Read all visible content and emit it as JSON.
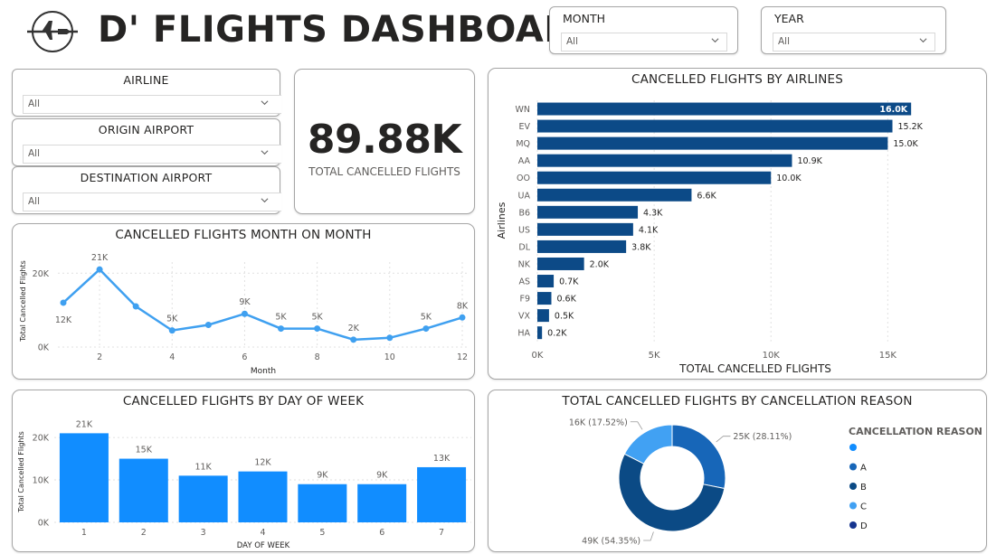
{
  "header": {
    "title": "D' FLIGHTS DASHBOARD",
    "logo_icon": "airplane-logo-icon"
  },
  "filters": {
    "month": {
      "label": "MONTH",
      "value": "All"
    },
    "year": {
      "label": "YEAR",
      "value": "All"
    },
    "airline": {
      "label": "AIRLINE",
      "value": "All"
    },
    "origin": {
      "label": "ORIGIN AIRPORT",
      "value": "All"
    },
    "destination": {
      "label": "DESTINATION AIRPORT",
      "value": "All"
    }
  },
  "kpi": {
    "value": "89.88K",
    "label": "TOTAL CANCELLED FLIGHTS"
  },
  "colors": {
    "line_blue": "#3fa0f0",
    "bar_blue": "#118dff",
    "navy": "#0c4a87",
    "grid": "#e1e1e1",
    "pie_dark": "#0b4a85",
    "pie_mid": "#1766b8",
    "pie_light": "#41a1f3",
    "legend_blank": "#118dff",
    "legend_a": "#1766b8",
    "legend_b": "#0b4a85",
    "legend_c": "#41a1f3",
    "legend_d": "#16358f"
  },
  "chart_data": [
    {
      "id": "airlines",
      "type": "bar",
      "orientation": "horizontal",
      "title": "CANCELLED FLIGHTS BY AIRLINES",
      "xlabel": "TOTAL CANCELLED FLIGHTS",
      "ylabel": "Airlines",
      "xlim": [
        0,
        17000
      ],
      "xticks": [
        0,
        5000,
        10000,
        15000
      ],
      "xtick_labels": [
        "0K",
        "5K",
        "10K",
        "15K"
      ],
      "categories": [
        "WN",
        "EV",
        "MQ",
        "AA",
        "OO",
        "UA",
        "B6",
        "US",
        "DL",
        "NK",
        "AS",
        "F9",
        "VX",
        "HA"
      ],
      "values": [
        16000,
        15200,
        15000,
        10900,
        10000,
        6600,
        4300,
        4100,
        3800,
        2000,
        700,
        600,
        500,
        200
      ],
      "data_labels": [
        "16.0K",
        "15.2K",
        "15.0K",
        "10.9K",
        "10.0K",
        "6.6K",
        "4.3K",
        "4.1K",
        "3.8K",
        "2.0K",
        "0.7K",
        "0.6K",
        "0.5K",
        "0.2K"
      ]
    },
    {
      "id": "month",
      "type": "line",
      "title": "CANCELLED FLIGHTS MONTH ON MONTH",
      "xlabel": "Month",
      "ylabel": "Total Cancelled Flights",
      "xlim": [
        1,
        12
      ],
      "ylim": [
        0,
        23000
      ],
      "xticks": [
        2,
        4,
        6,
        8,
        10,
        12
      ],
      "yticks": [
        0,
        20000
      ],
      "ytick_labels": [
        "0K",
        "20K"
      ],
      "x": [
        1,
        2,
        3,
        4,
        5,
        6,
        7,
        8,
        9,
        10,
        11,
        12
      ],
      "values": [
        12000,
        21000,
        11000,
        4500,
        6000,
        9000,
        5000,
        5000,
        2000,
        2500,
        5000,
        8000
      ],
      "data_labels": [
        "12K",
        "21K",
        "",
        "5K",
        "",
        "9K",
        "5K",
        "5K",
        "2K",
        "",
        "5K",
        "8K"
      ]
    },
    {
      "id": "dow",
      "type": "bar",
      "title": "CANCELLED FLIGHTS BY DAY OF WEEK",
      "xlabel": "DAY OF WEEK",
      "ylabel": "Total Cancelled Flights",
      "ylim": [
        0,
        23000
      ],
      "yticks": [
        0,
        10000,
        20000
      ],
      "ytick_labels": [
        "0K",
        "10K",
        "20K"
      ],
      "categories": [
        "1",
        "2",
        "3",
        "4",
        "5",
        "6",
        "7"
      ],
      "values": [
        21000,
        15000,
        11000,
        12000,
        9000,
        9000,
        13000
      ],
      "data_labels": [
        "21K",
        "15K",
        "11K",
        "12K",
        "9K",
        "9K",
        "13K"
      ]
    },
    {
      "id": "reason",
      "type": "pie",
      "donut": true,
      "title": "TOTAL CANCELLED FLIGHTS BY CANCELLATION REASON",
      "slices": [
        {
          "label": "A",
          "value": 25,
          "pct": 28.11,
          "data_label": "25K (28.11%)"
        },
        {
          "label": "B",
          "value": 49,
          "pct": 54.35,
          "data_label": "49K (54.35%)"
        },
        {
          "label": "C",
          "value": 16,
          "pct": 17.52,
          "data_label": "16K (17.52%)"
        }
      ],
      "legend": {
        "title": "CANCELLATION REASON",
        "entries": [
          "",
          "A",
          "B",
          "C",
          "D"
        ]
      }
    }
  ]
}
